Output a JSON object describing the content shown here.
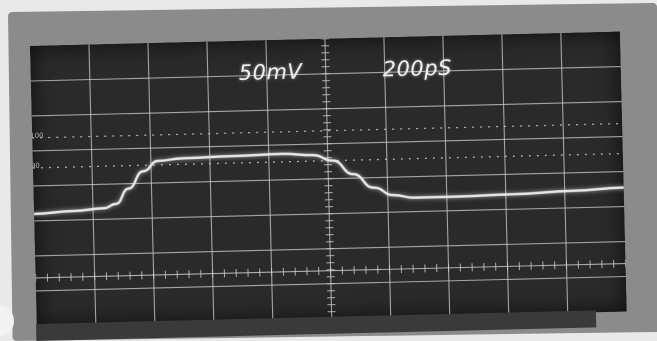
{
  "scope": {
    "volts_per_div": "50mV",
    "time_per_div": "200pS",
    "graticule_marks": [
      "100",
      "90"
    ]
  },
  "colors": {
    "trace": "#e6e6e6",
    "grid": "#cfcfcf",
    "screen": "#2a2a2a"
  }
}
